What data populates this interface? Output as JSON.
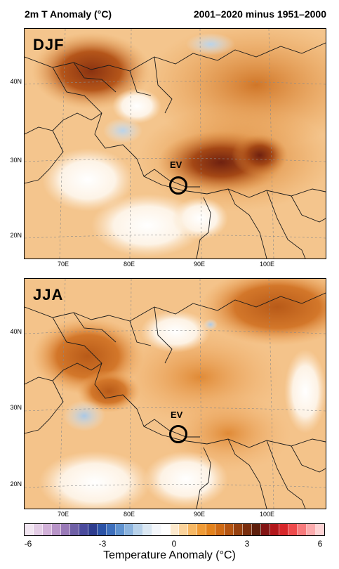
{
  "header": {
    "title_left": "2m T Anomaly (°C)",
    "title_right": "2001–2020 minus 1951–2000"
  },
  "panels": [
    {
      "season": "DJF",
      "marker_label": "EV"
    },
    {
      "season": "JJA",
      "marker_label": "EV"
    }
  ],
  "axes": {
    "lat_labels": [
      "40N",
      "30N",
      "20N"
    ],
    "lon_labels": [
      "70E",
      "80E",
      "90E",
      "100E"
    ]
  },
  "colorbar": {
    "ticks": [
      "-6",
      "-3",
      "0",
      "3",
      "6"
    ],
    "label": "Temperature Anomaly (°C)",
    "colors": [
      "#f2e6f2",
      "#e4cde6",
      "#d2b1d9",
      "#b894c8",
      "#9a7ab8",
      "#6f60a6",
      "#4a4a9c",
      "#2d3c8e",
      "#2a52a6",
      "#3d6fbc",
      "#5f92cf",
      "#8cb4de",
      "#b8d2ea",
      "#dbe8f3",
      "#f4f7fb",
      "#ffffff",
      "#fde9cc",
      "#fbd39b",
      "#f7b864",
      "#f09b36",
      "#e3821c",
      "#cf6a14",
      "#b55411",
      "#96400f",
      "#7a2e0e",
      "#5e1f0c",
      "#821414",
      "#b2171b",
      "#d7262a",
      "#ee4a4c",
      "#f77a7c",
      "#fbabad",
      "#fdd3d4"
    ]
  }
}
